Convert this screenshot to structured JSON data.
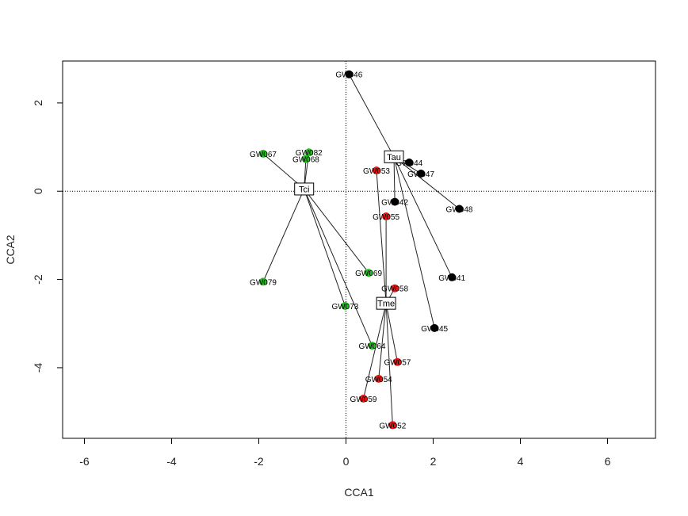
{
  "chart_data": {
    "type": "scatter",
    "title": "",
    "xlabel": "CCA1",
    "ylabel": "CCA2",
    "xlim": [
      -6.5,
      7.1
    ],
    "ylim": [
      -5.6,
      2.95
    ],
    "xticks": [
      -6,
      -4,
      -2,
      0,
      2,
      4,
      6
    ],
    "yticks": [
      -4,
      -2,
      0,
      2
    ],
    "reference_lines": {
      "x": 0,
      "y": 0,
      "style": "dotted"
    },
    "grid": false,
    "legend": "none",
    "groups": [
      {
        "centroid": {
          "label": "Tau",
          "x": 1.1,
          "y": 0.78
        },
        "color": "#000000",
        "points": [
          {
            "label": "GW046",
            "x": 0.07,
            "y": 2.65
          },
          {
            "label": "GW044",
            "x": 1.45,
            "y": 0.65
          },
          {
            "label": "GW047",
            "x": 1.72,
            "y": 0.4
          },
          {
            "label": "GW042",
            "x": 1.12,
            "y": -0.24
          },
          {
            "label": "GW048",
            "x": 2.6,
            "y": -0.4
          },
          {
            "label": "GW041",
            "x": 2.43,
            "y": -1.95
          },
          {
            "label": "GW045",
            "x": 2.03,
            "y": -3.1
          }
        ]
      },
      {
        "centroid": {
          "label": "Tci",
          "x": -0.96,
          "y": 0.05
        },
        "color": "#22bb22",
        "points": [
          {
            "label": "GW067",
            "x": -1.9,
            "y": 0.85
          },
          {
            "label": "GW082",
            "x": -0.85,
            "y": 0.88
          },
          {
            "label": "GW068",
            "x": -0.92,
            "y": 0.73
          },
          {
            "label": "GW069",
            "x": 0.52,
            "y": -1.85
          },
          {
            "label": "GW079",
            "x": -1.9,
            "y": -2.05
          },
          {
            "label": "GW073",
            "x": -0.02,
            "y": -2.6
          },
          {
            "label": "GW064",
            "x": 0.6,
            "y": -3.5
          }
        ]
      },
      {
        "centroid": {
          "label": "Tme",
          "x": 0.92,
          "y": -2.54
        },
        "color": "#ee1111",
        "points": [
          {
            "label": "GW053",
            "x": 0.7,
            "y": 0.47
          },
          {
            "label": "GW055",
            "x": 0.92,
            "y": -0.57
          },
          {
            "label": "GW058",
            "x": 1.12,
            "y": -2.2
          },
          {
            "label": "GW057",
            "x": 1.18,
            "y": -3.87
          },
          {
            "label": "GW054",
            "x": 0.75,
            "y": -4.25
          },
          {
            "label": "GW059",
            "x": 0.4,
            "y": -4.7
          },
          {
            "label": "GW052",
            "x": 1.07,
            "y": -5.3
          }
        ]
      }
    ]
  }
}
